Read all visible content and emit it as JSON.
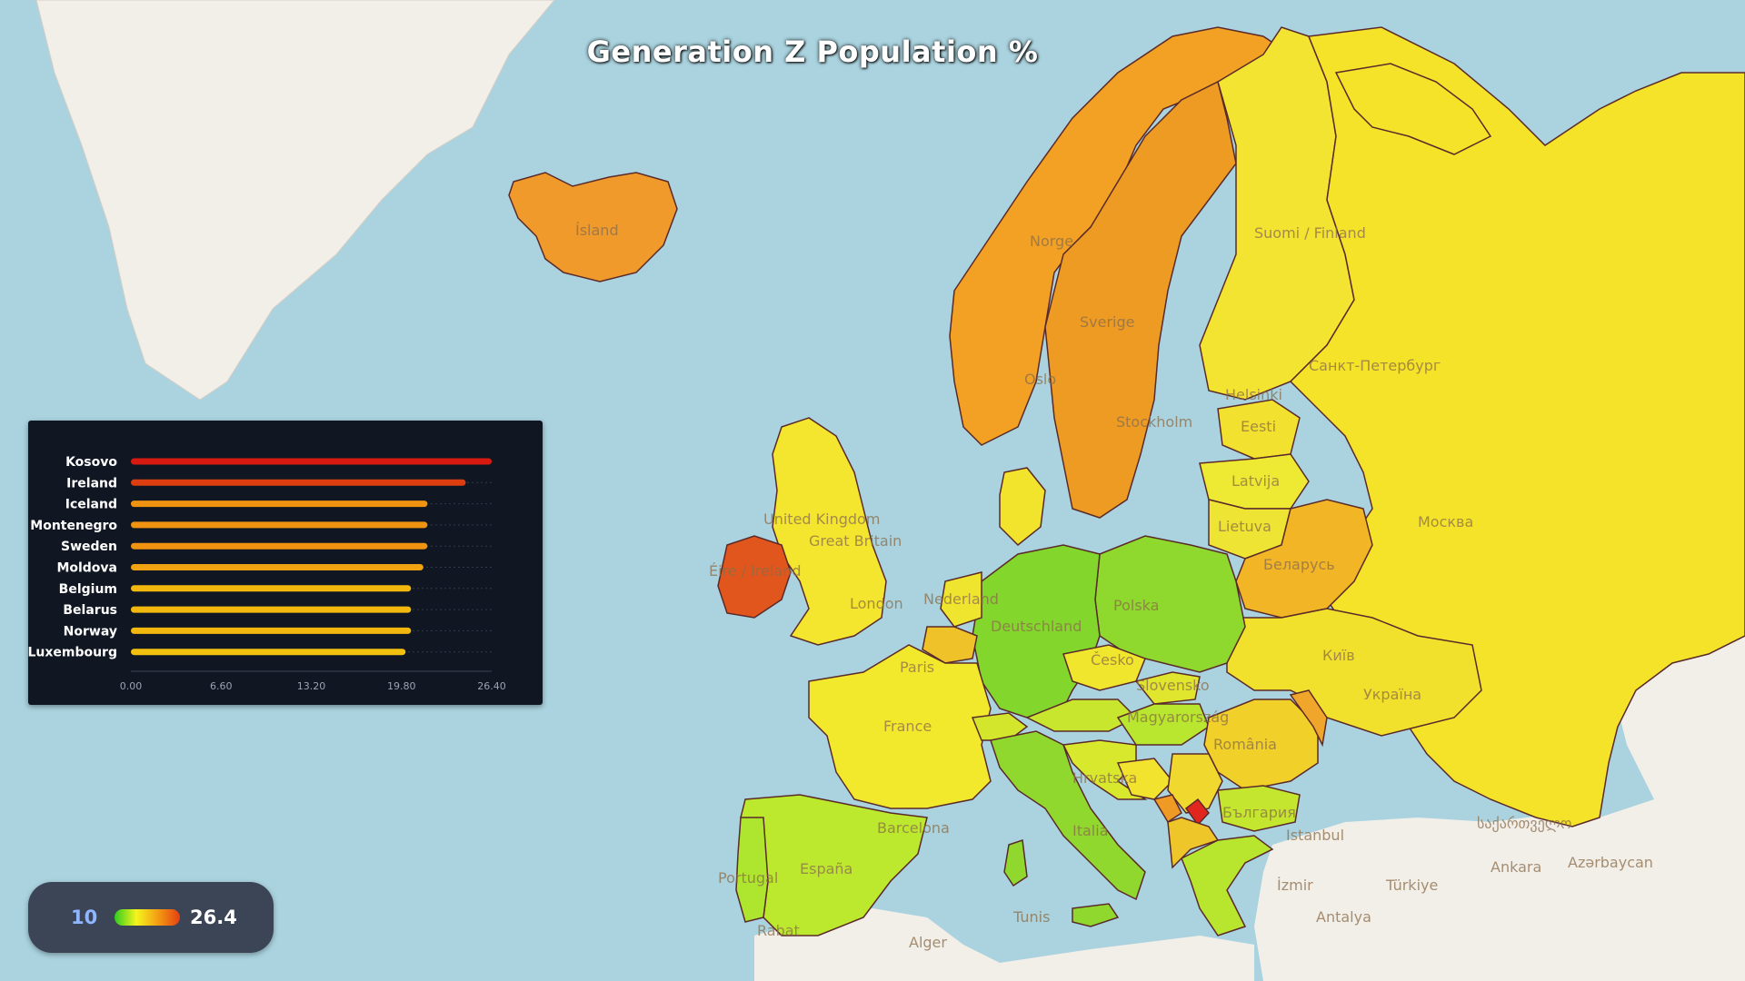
{
  "title": "Generation Z Population %",
  "legend": {
    "min_label": "10",
    "max_label": "26.4",
    "colors": [
      "#2ecc1f",
      "#f5f51d",
      "#f39c12",
      "#e53e12"
    ]
  },
  "chart_data": {
    "type": "bar",
    "orientation": "horizontal",
    "categories": [
      "Kosovo",
      "Ireland",
      "Iceland",
      "Montenegro",
      "Sweden",
      "Moldova",
      "Belgium",
      "Belarus",
      "Norway",
      "Luxembourg"
    ],
    "values": [
      26.4,
      24.5,
      21.7,
      21.7,
      21.7,
      21.4,
      20.5,
      20.5,
      20.5,
      20.1
    ],
    "bar_colors": [
      "#d7190f",
      "#dd3e0f",
      "#f09310",
      "#f09310",
      "#f09310",
      "#f0a210",
      "#f2b80e",
      "#f2b80e",
      "#f2b80e",
      "#f2c00e"
    ],
    "xticks": [
      "0.00",
      "6.60",
      "13.20",
      "19.80",
      "26.40"
    ],
    "xlim": [
      0,
      26.4
    ],
    "grid": false
  },
  "map_labels": [
    "Ísland",
    "Suomi / Finland",
    "Norge",
    "Sverige",
    "Oslo",
    "Stockholm",
    "Helsinki",
    "Санкт-Петербург",
    "Eesti",
    "Latvija",
    "Lietuva",
    "Беларусь",
    "Москва",
    "Polska",
    "Deutschland",
    "Nederland",
    "United Kingdom",
    "Great Britain",
    "Éire / Ireland",
    "London",
    "Paris",
    "France",
    "Česko",
    "Slovensko",
    "Magyarország",
    "România",
    "Україна",
    "Київ",
    "España",
    "Barcelona",
    "Portugal",
    "Italia",
    "Hrvatska",
    "България",
    "Istanbul",
    "Türkiye",
    "Ankara",
    "İzmir",
    "Antalya",
    "Alger",
    "Tunis",
    "Rabat",
    "Azərbaycan",
    "საქართველო"
  ],
  "map_colors": {
    "water": "#aad3df",
    "land": "#f2efe9",
    "border": "#5a2a2a"
  }
}
